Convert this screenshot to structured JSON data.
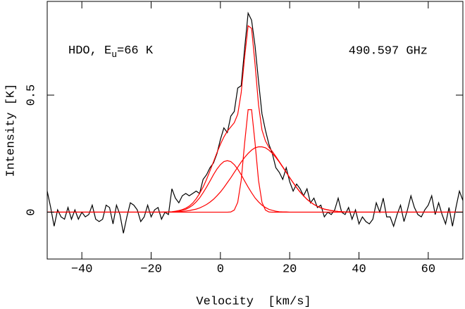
{
  "chart_data": {
    "type": "line",
    "xlabel": "Velocity  [km/s]",
    "ylabel": "Intensity [K]",
    "annotations": [
      [
        "HDO, E",
        "u",
        "=66 K"
      ],
      [
        "490.597 GHz"
      ]
    ],
    "xlim": [
      -50,
      70
    ],
    "ylim": [
      -0.2,
      0.9
    ],
    "xticks": [
      {
        "value": -40,
        "label": "−40"
      },
      {
        "value": -20,
        "label": "−20"
      },
      0,
      20,
      40,
      60
    ],
    "yticks": [
      0,
      0.5
    ],
    "series": [
      {
        "color": "#000000",
        "x": [
          -50,
          -49,
          -48,
          -47,
          -46,
          -45,
          -44,
          -43,
          -42,
          -41,
          -40,
          -39,
          -38,
          -37,
          -36,
          -35,
          -34,
          -33,
          -32,
          -31,
          -30,
          -29,
          -28,
          -27,
          -26,
          -25,
          -24,
          -23,
          -22,
          -21,
          -20,
          -19,
          -18,
          -17,
          -16,
          -15,
          -14,
          -13,
          -12,
          -11,
          -10,
          -9,
          -8,
          -7,
          -6,
          -5,
          -4,
          -3,
          -2,
          -1,
          0,
          1,
          2,
          3,
          4,
          5,
          6,
          7,
          8,
          9,
          10,
          11,
          12,
          13,
          14,
          15,
          16,
          17,
          18,
          19,
          20,
          21,
          22,
          23,
          24,
          25,
          26,
          27,
          28,
          29,
          30,
          31,
          32,
          33,
          34,
          35,
          36,
          37,
          38,
          39,
          40,
          41,
          42,
          43,
          44,
          45,
          46,
          47,
          48,
          49,
          50,
          51,
          52,
          53,
          54,
          55,
          56,
          57,
          58,
          59,
          60,
          61,
          62,
          63,
          64,
          65,
          66,
          67,
          68,
          69,
          70
        ],
        "values": [
          0.09,
          0.02,
          -0.06,
          0.01,
          -0.02,
          -0.03,
          0.02,
          -0.03,
          0.01,
          -0.03,
          0.0,
          -0.02,
          -0.01,
          0.03,
          -0.03,
          -0.04,
          -0.03,
          0.03,
          0.02,
          -0.05,
          0.03,
          -0.01,
          -0.09,
          -0.02,
          0.04,
          0.03,
          0.01,
          -0.04,
          -0.02,
          0.03,
          -0.02,
          0.01,
          0.02,
          -0.03,
          0.0,
          -0.01,
          0.1,
          0.06,
          0.04,
          0.07,
          0.08,
          0.07,
          0.08,
          0.09,
          0.08,
          0.14,
          0.16,
          0.19,
          0.21,
          0.25,
          0.31,
          0.36,
          0.34,
          0.41,
          0.43,
          0.53,
          0.54,
          0.7,
          0.85,
          0.82,
          0.71,
          0.56,
          0.42,
          0.35,
          0.29,
          0.25,
          0.19,
          0.17,
          0.14,
          0.19,
          0.13,
          0.09,
          0.12,
          0.1,
          0.07,
          0.1,
          0.04,
          0.06,
          0.02,
          0.03,
          -0.02,
          0.0,
          -0.01,
          0.01,
          0.06,
          0.0,
          -0.01,
          0.02,
          -0.03,
          0.01,
          -0.05,
          -0.02,
          -0.04,
          -0.05,
          -0.03,
          0.04,
          0.0,
          0.06,
          -0.02,
          -0.02,
          -0.06,
          -0.01,
          0.03,
          -0.04,
          0.01,
          0.07,
          0.02,
          -0.01,
          -0.02,
          0.01,
          0.03,
          0.07,
          -0.01,
          0.04,
          -0.01,
          -0.05,
          0.02,
          -0.06,
          0.02,
          0.09,
          0.05
        ]
      },
      {
        "color": "#ff0000",
        "x": [
          -50,
          -20,
          -19,
          -18,
          -17,
          -16,
          -15,
          -14,
          -13,
          -12,
          -11,
          -10,
          -9,
          -8,
          -7,
          -6,
          -5,
          -4,
          -3,
          -2,
          -1,
          0,
          1,
          2,
          3,
          4,
          5,
          6,
          7,
          8,
          9,
          10,
          11,
          12,
          13,
          14,
          15,
          16,
          17,
          18,
          19,
          20,
          21,
          22,
          23,
          24,
          25,
          26,
          27,
          28,
          29,
          30,
          31,
          32,
          33,
          34,
          35,
          36,
          37,
          38,
          39,
          40,
          70
        ],
        "values": [
          0,
          0,
          0,
          0,
          0,
          0,
          0.001,
          0.001,
          0.002,
          0.004,
          0.008,
          0.012,
          0.02,
          0.03,
          0.044,
          0.061,
          0.083,
          0.107,
          0.133,
          0.16,
          0.184,
          0.203,
          0.216,
          0.22,
          0.216,
          0.203,
          0.184,
          0.16,
          0.133,
          0.107,
          0.083,
          0.061,
          0.044,
          0.03,
          0.02,
          0.012,
          0.008,
          0.004,
          0.002,
          0.001,
          0.001,
          0,
          0,
          0,
          0,
          0,
          0,
          0,
          0,
          0,
          0,
          0,
          0,
          0,
          0,
          0,
          0,
          0,
          0,
          0,
          0,
          0,
          0
        ]
      },
      {
        "color": "#ff0000",
        "x": [
          -50,
          -20,
          -19,
          -18,
          -17,
          -16,
          -15,
          -14,
          -13,
          -12,
          -11,
          -10,
          -9,
          -8,
          -7,
          -6,
          -5,
          -4,
          -3,
          -2,
          -1,
          0,
          1,
          2,
          3,
          4,
          5,
          6,
          7,
          8,
          9,
          10,
          11,
          12,
          13,
          14,
          15,
          16,
          17,
          18,
          19,
          20,
          21,
          22,
          23,
          24,
          25,
          26,
          27,
          28,
          29,
          30,
          31,
          32,
          33,
          34,
          35,
          36,
          37,
          38,
          39,
          40,
          70
        ],
        "values": [
          0,
          0,
          0,
          0,
          0,
          0,
          0,
          0,
          0,
          0,
          0,
          0,
          0,
          0,
          0,
          0,
          0,
          0,
          0,
          0,
          0,
          0,
          0,
          0,
          0.001,
          0.009,
          0.042,
          0.136,
          0.296,
          0.438,
          0.438,
          0.296,
          0.136,
          0.042,
          0.009,
          0.001,
          0,
          0,
          0,
          0,
          0,
          0,
          0,
          0,
          0,
          0,
          0,
          0,
          0,
          0,
          0,
          0,
          0,
          0,
          0,
          0,
          0,
          0,
          0,
          0,
          0,
          0,
          0
        ]
      },
      {
        "color": "#ff0000",
        "x": [
          -50,
          -20,
          -19,
          -18,
          -17,
          -16,
          -15,
          -14,
          -13,
          -12,
          -11,
          -10,
          -9,
          -8,
          -7,
          -6,
          -5,
          -4,
          -3,
          -2,
          -1,
          0,
          1,
          2,
          3,
          4,
          5,
          6,
          7,
          8,
          9,
          10,
          11,
          12,
          13,
          14,
          15,
          16,
          17,
          18,
          19,
          20,
          21,
          22,
          23,
          24,
          25,
          26,
          27,
          28,
          29,
          30,
          31,
          32,
          33,
          34,
          35,
          36,
          37,
          38,
          39,
          40,
          70
        ],
        "values": [
          0,
          0,
          0,
          0,
          0,
          0,
          0.001,
          0.001,
          0.001,
          0.002,
          0.003,
          0.005,
          0.007,
          0.01,
          0.013,
          0.018,
          0.025,
          0.033,
          0.043,
          0.055,
          0.07,
          0.086,
          0.105,
          0.126,
          0.147,
          0.17,
          0.192,
          0.214,
          0.234,
          0.251,
          0.265,
          0.275,
          0.279,
          0.279,
          0.275,
          0.265,
          0.251,
          0.234,
          0.214,
          0.192,
          0.17,
          0.147,
          0.126,
          0.105,
          0.086,
          0.07,
          0.055,
          0.043,
          0.033,
          0.025,
          0.018,
          0.013,
          0.01,
          0.007,
          0.005,
          0.003,
          0.002,
          0.001,
          0.001,
          0.001,
          0,
          0,
          0
        ]
      },
      {
        "color": "#ff0000",
        "x": [
          -50,
          -20,
          -19,
          -18,
          -17,
          -16,
          -15,
          -14,
          -13,
          -12,
          -11,
          -10,
          -9,
          -8,
          -7,
          -6,
          -5,
          -4,
          -3,
          -2,
          -1,
          0,
          1,
          2,
          3,
          4,
          5,
          6,
          7,
          8,
          9,
          10,
          11,
          12,
          13,
          14,
          15,
          16,
          17,
          18,
          19,
          20,
          21,
          22,
          23,
          24,
          25,
          26,
          27,
          28,
          29,
          30,
          31,
          32,
          33,
          34,
          35,
          36,
          37,
          38,
          39,
          40,
          70
        ],
        "values": [
          0,
          0,
          0,
          0,
          0,
          0.001,
          0.001,
          0.002,
          0.004,
          0.007,
          0.011,
          0.017,
          0.026,
          0.039,
          0.057,
          0.08,
          0.107,
          0.14,
          0.177,
          0.215,
          0.254,
          0.29,
          0.321,
          0.346,
          0.364,
          0.382,
          0.418,
          0.51,
          0.663,
          0.796,
          0.785,
          0.632,
          0.459,
          0.351,
          0.304,
          0.277,
          0.259,
          0.238,
          0.216,
          0.194,
          0.171,
          0.148,
          0.126,
          0.105,
          0.086,
          0.07,
          0.055,
          0.043,
          0.033,
          0.025,
          0.018,
          0.013,
          0.01,
          0.007,
          0.005,
          0.003,
          0.002,
          0.001,
          0.001,
          0.001,
          0,
          0,
          0
        ]
      }
    ]
  }
}
